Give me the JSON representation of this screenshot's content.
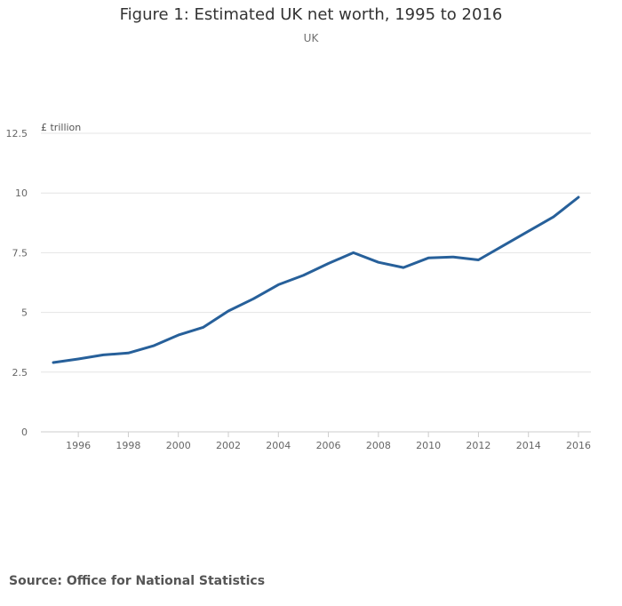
{
  "chart_data": {
    "type": "line",
    "title": "Figure 1: Estimated UK net worth, 1995 to 2016",
    "subtitle": "UK",
    "ylabel": "£ trillion",
    "xlabel": "",
    "source": "Source: Office for National Statistics",
    "ylim": [
      0,
      12.5
    ],
    "xlim": [
      1995,
      2016
    ],
    "y_ticks": [
      0,
      2.5,
      5,
      7.5,
      10,
      12.5
    ],
    "y_tick_labels": [
      "0",
      "2.5",
      "5",
      "7.5",
      "10",
      "12.5"
    ],
    "x_ticks": [
      1996,
      1998,
      2000,
      2002,
      2004,
      2006,
      2008,
      2010,
      2012,
      2014,
      2016
    ],
    "x_tick_labels": [
      "1996",
      "1998",
      "2000",
      "2002",
      "2004",
      "2006",
      "2008",
      "2010",
      "2012",
      "2014",
      "2016"
    ],
    "grid": true,
    "series": [
      {
        "name": "UK net worth",
        "color": "#27609a",
        "x": [
          1995,
          1996,
          1997,
          1998,
          1999,
          2000,
          2001,
          2002,
          2003,
          2004,
          2005,
          2006,
          2007,
          2008,
          2009,
          2010,
          2011,
          2012,
          2013,
          2014,
          2015,
          2016
        ],
        "values": [
          2.9,
          3.05,
          3.22,
          3.3,
          3.6,
          4.05,
          4.38,
          5.06,
          5.57,
          6.16,
          6.55,
          7.05,
          7.5,
          7.1,
          6.88,
          7.28,
          7.32,
          7.2,
          7.8,
          8.4,
          9.0,
          9.82
        ]
      }
    ]
  }
}
